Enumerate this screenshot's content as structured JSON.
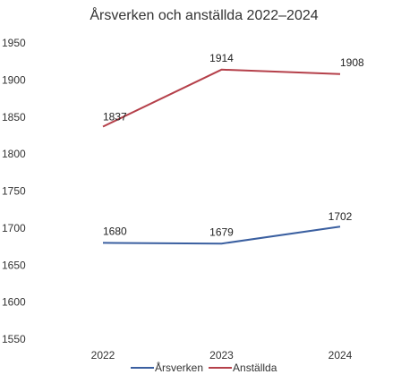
{
  "chart_data": {
    "type": "line",
    "title": "Årsverken och anställda 2022–2024",
    "categories": [
      "2022",
      "2023",
      "2024"
    ],
    "ylim": [
      1550,
      1950
    ],
    "yticks": [
      1950,
      1900,
      1850,
      1800,
      1750,
      1700,
      1650,
      1600,
      1550
    ],
    "grid": false,
    "legend_position": "bottom",
    "series": [
      {
        "name": "Årsverken",
        "values": [
          1680,
          1679,
          1702
        ],
        "color": "#3a5fa0"
      },
      {
        "name": "Anställda",
        "values": [
          1837,
          1914,
          1908
        ],
        "color": "#b5404a"
      }
    ]
  }
}
